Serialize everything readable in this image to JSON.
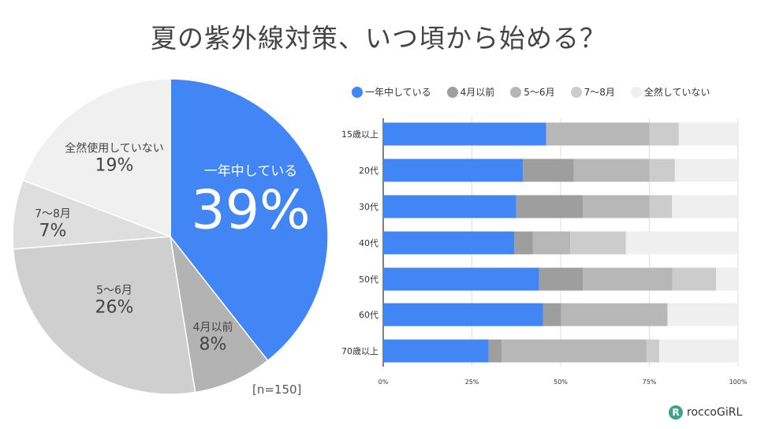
{
  "title": "夏の紫外線対策、いつ頃から始める？",
  "n_label": "[n=150]",
  "logo": {
    "text": "roccoGiRL",
    "mark": "R"
  },
  "colors": [
    "#4285f4",
    "#9e9e9e",
    "#b7b7b7",
    "#cccccc",
    "#efefef"
  ],
  "pie_colors": [
    "#4285f4",
    "#b3b3b3",
    "#cfcfcf",
    "#dedede",
    "#f0f0f0"
  ],
  "chart_data": [
    {
      "type": "pie",
      "n": "[n=150]",
      "slices": [
        {
          "label": "一年中している",
          "value": 39,
          "text": "39%"
        },
        {
          "label": "4月以前",
          "value": 8,
          "text": "8%"
        },
        {
          "label": "5〜6月",
          "value": 26,
          "text": "26%"
        },
        {
          "label": "7〜8月",
          "value": 7,
          "text": "7%"
        },
        {
          "label": "全然使用していない",
          "value": 19,
          "text": "19%"
        }
      ]
    },
    {
      "type": "bar",
      "orientation": "horizontal",
      "stacked": "percent",
      "categories": [
        "15歳以上",
        "20代",
        "30代",
        "40代",
        "50代",
        "60代",
        "70歳以上"
      ],
      "series": [
        {
          "name": "一年中している",
          "values": [
            45.9,
            39.4,
            37.5,
            36.9,
            43.9,
            45.0,
            29.7
          ]
        },
        {
          "name": "4月以前",
          "values": [
            0,
            14.3,
            18.8,
            5.3,
            12.4,
            5.1,
            3.7
          ]
        },
        {
          "name": "5〜6月",
          "values": [
            29.1,
            21.3,
            18.7,
            10.5,
            25.2,
            30.0,
            40.8
          ]
        },
        {
          "name": "7〜8月",
          "values": [
            8.3,
            7.2,
            6.4,
            15.7,
            12.3,
            0,
            3.6
          ]
        },
        {
          "name": "全然していない",
          "values": [
            16.7,
            17.8,
            18.6,
            31.6,
            6.2,
            19.9,
            22.2
          ]
        }
      ],
      "xticks": [
        "0%",
        "25%",
        "50%",
        "75%",
        "100%"
      ],
      "xlim": [
        0,
        100
      ],
      "grid": true,
      "legend": "top"
    }
  ]
}
